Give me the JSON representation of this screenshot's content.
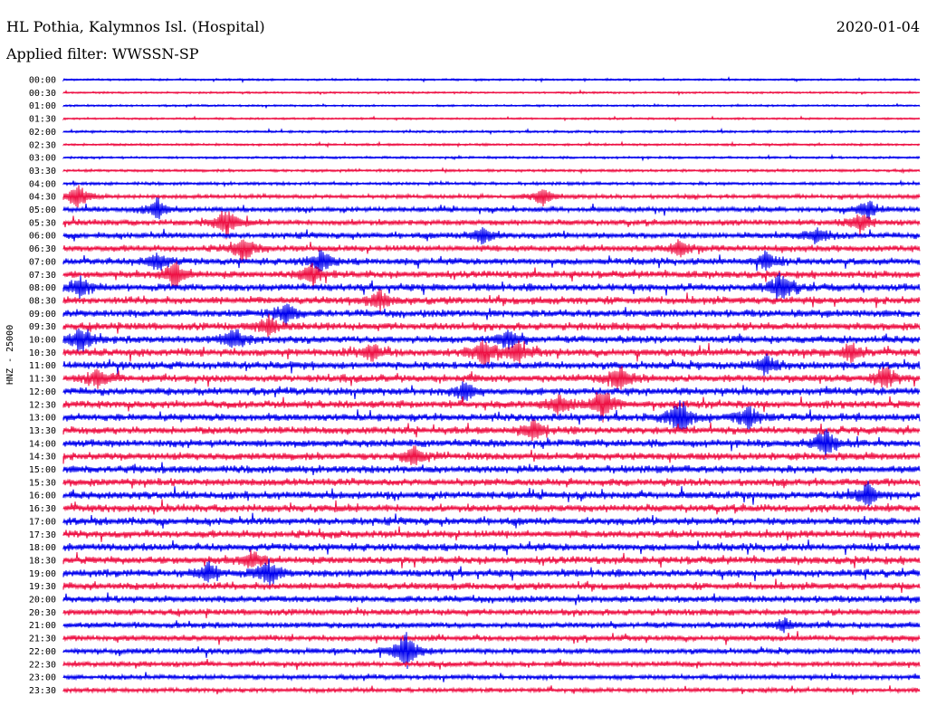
{
  "header": {
    "station": "HL Pothia, Kalymnos Isl. (Hospital)",
    "date": "2020-01-04",
    "filter": "Applied filter: WWSSN-SP"
  },
  "chart_data": {
    "type": "line",
    "title": "HL Pothia, Kalymnos Isl. (Hospital)",
    "subtitle": "Applied filter: WWSSN-SP",
    "ylabel": "HNZ - 25000",
    "colors": [
      "#0000ee",
      "#ee1144"
    ],
    "rows": [
      "00:00",
      "00:30",
      "01:00",
      "01:30",
      "02:00",
      "02:30",
      "03:00",
      "03:30",
      "04:00",
      "04:30",
      "05:00",
      "05:30",
      "06:00",
      "06:30",
      "07:00",
      "07:30",
      "08:00",
      "08:30",
      "09:00",
      "09:30",
      "10:00",
      "10:30",
      "11:00",
      "11:30",
      "12:00",
      "12:30",
      "13:00",
      "13:30",
      "14:00",
      "14:30",
      "15:00",
      "15:30",
      "16:00",
      "16:30",
      "17:00",
      "17:30",
      "18:00",
      "18:30",
      "19:00",
      "19:30",
      "20:00",
      "20:30",
      "21:00",
      "21:30",
      "22:00",
      "22:30",
      "23:00",
      "23:30"
    ],
    "noise_level": [
      1,
      1,
      1,
      1,
      1.2,
      1.2,
      1.2,
      1.4,
      1.6,
      2.2,
      2.6,
      3,
      3.2,
      3.4,
      3.6,
      3.8,
      4,
      4,
      4,
      4,
      4,
      4,
      4,
      4,
      4,
      4,
      4,
      4,
      4,
      4,
      4,
      4,
      4,
      4,
      4,
      4,
      4,
      4,
      4,
      3.8,
      3.6,
      3.4,
      3.2,
      3,
      3,
      2.8,
      2.6,
      2.4
    ],
    "bursts": [
      [
        9,
        0.016,
        14
      ],
      [
        9,
        0.56,
        10
      ],
      [
        10,
        0.11,
        12
      ],
      [
        10,
        0.94,
        10
      ],
      [
        11,
        0.19,
        16
      ],
      [
        11,
        0.93,
        10
      ],
      [
        12,
        0.49,
        10
      ],
      [
        12,
        0.88,
        10
      ],
      [
        13,
        0.21,
        14
      ],
      [
        13,
        0.72,
        8
      ],
      [
        14,
        0.11,
        10
      ],
      [
        14,
        0.3,
        12
      ],
      [
        14,
        0.82,
        10
      ],
      [
        15,
        0.13,
        14
      ],
      [
        15,
        0.29,
        12
      ],
      [
        16,
        0.02,
        12
      ],
      [
        16,
        0.84,
        18
      ],
      [
        17,
        0.37,
        10
      ],
      [
        18,
        0.26,
        12
      ],
      [
        19,
        0.24,
        10
      ],
      [
        20,
        0.02,
        14
      ],
      [
        20,
        0.2,
        12
      ],
      [
        20,
        0.52,
        10
      ],
      [
        21,
        0.36,
        10
      ],
      [
        21,
        0.49,
        14
      ],
      [
        21,
        0.53,
        12
      ],
      [
        21,
        0.92,
        10
      ],
      [
        22,
        0.82,
        10
      ],
      [
        23,
        0.04,
        10
      ],
      [
        23,
        0.65,
        14
      ],
      [
        23,
        0.96,
        12
      ],
      [
        24,
        0.47,
        10
      ],
      [
        25,
        0.58,
        12
      ],
      [
        25,
        0.63,
        18
      ],
      [
        26,
        0.72,
        20
      ],
      [
        26,
        0.8,
        12
      ],
      [
        27,
        0.55,
        10
      ],
      [
        28,
        0.89,
        16
      ],
      [
        29,
        0.41,
        10
      ],
      [
        32,
        0.94,
        12
      ],
      [
        37,
        0.22,
        10
      ],
      [
        38,
        0.17,
        12
      ],
      [
        38,
        0.24,
        14
      ],
      [
        42,
        0.84,
        8
      ],
      [
        44,
        0.4,
        22
      ]
    ]
  }
}
